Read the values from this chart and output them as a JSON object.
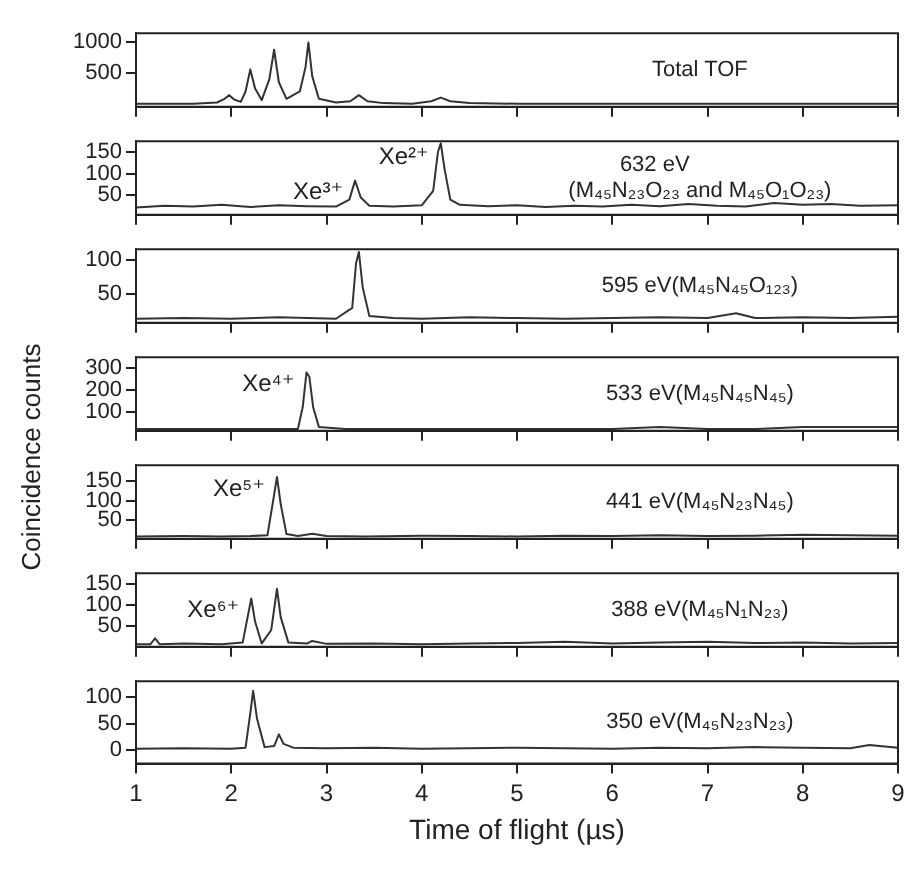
{
  "chart_data": [
    {
      "type": "line",
      "xlim": [
        1,
        9
      ],
      "xticks": [
        1,
        2,
        3,
        4,
        5,
        6,
        7,
        8,
        9
      ],
      "ylim": [
        -50,
        1150
      ],
      "yticks": [
        500,
        1000
      ],
      "tick_labels": "y",
      "annotations": [
        "Total TOF"
      ],
      "x": [
        1,
        1.3,
        1.6,
        1.85,
        1.93,
        1.98,
        2.03,
        2.1,
        2.15,
        2.2,
        2.25,
        2.32,
        2.4,
        2.45,
        2.5,
        2.58,
        2.72,
        2.78,
        2.81,
        2.85,
        2.92,
        3.1,
        3.25,
        3.34,
        3.43,
        3.6,
        3.9,
        4.1,
        4.2,
        4.3,
        4.5,
        5,
        5.5,
        6,
        6.5,
        7,
        7.5,
        8,
        8.5,
        9
      ],
      "series": [
        {
          "color": "#333333",
          "values": [
            0,
            0,
            0,
            20,
            80,
            140,
            70,
            30,
            200,
            560,
            250,
            60,
            400,
            880,
            350,
            80,
            200,
            600,
            1000,
            450,
            80,
            20,
            40,
            140,
            40,
            10,
            0,
            40,
            100,
            40,
            10,
            0,
            0,
            0,
            0,
            0,
            0,
            0,
            0,
            0
          ]
        }
      ]
    },
    {
      "type": "line",
      "xlim": [
        1,
        9
      ],
      "xticks": [
        1,
        2,
        3,
        4,
        5,
        6,
        7,
        8,
        9
      ],
      "ylim": [
        5,
        175
      ],
      "yticks": [
        50,
        100,
        150
      ],
      "tick_labels": "y",
      "annotations": [
        "632 eV",
        "(M₄₅N₂₃O₂₃ and M₄₅O₁O₂₃)",
        {
          "text": "Xe³⁺",
          "x": 3.3,
          "y": 84
        },
        {
          "text": "Xe²⁺",
          "x": 4.2,
          "y": 170
        }
      ],
      "x": [
        1,
        1.3,
        1.6,
        1.9,
        2.2,
        2.5,
        2.8,
        3.1,
        3.24,
        3.3,
        3.36,
        3.45,
        3.7,
        4.0,
        4.12,
        4.17,
        4.2,
        4.24,
        4.3,
        4.4,
        4.7,
        5,
        5.3,
        5.6,
        5.9,
        6.2,
        6.5,
        6.8,
        7.1,
        7.4,
        7.7,
        8,
        8.3,
        8.6,
        9
      ],
      "series": [
        {
          "color": "#333333",
          "values": [
            22,
            26,
            24,
            28,
            23,
            27,
            25,
            24,
            40,
            84,
            45,
            26,
            24,
            27,
            60,
            150,
            170,
            110,
            40,
            28,
            25,
            27,
            23,
            26,
            24,
            28,
            25,
            30,
            26,
            24,
            32,
            28,
            30,
            26,
            27
          ]
        }
      ]
    },
    {
      "type": "line",
      "xlim": [
        1,
        9
      ],
      "xticks": [
        1,
        2,
        3,
        4,
        5,
        6,
        7,
        8,
        9
      ],
      "ylim": [
        8,
        116
      ],
      "yticks": [
        50,
        100
      ],
      "tick_labels": "y",
      "annotations": [
        "595 eV(M₄₅N₄₅O₁₂₃)"
      ],
      "x": [
        1,
        1.5,
        2,
        2.5,
        2.8,
        3.1,
        3.27,
        3.31,
        3.34,
        3.38,
        3.45,
        3.7,
        4,
        4.5,
        5,
        5.5,
        6,
        6.5,
        7,
        7.3,
        7.5,
        8,
        8.5,
        9
      ],
      "series": [
        {
          "color": "#333333",
          "values": [
            14,
            15,
            14,
            16,
            15,
            14,
            30,
            95,
            112,
            60,
            18,
            15,
            14,
            16,
            15,
            14,
            15,
            16,
            15,
            22,
            15,
            16,
            15,
            17
          ]
        }
      ]
    },
    {
      "type": "line",
      "xlim": [
        1,
        9
      ],
      "xticks": [
        1,
        2,
        3,
        4,
        5,
        6,
        7,
        8,
        9
      ],
      "ylim": [
        12,
        350
      ],
      "yticks": [
        100,
        200,
        300
      ],
      "tick_labels": "y",
      "ylabel": "Coincidence counts",
      "annotations": [
        "533 eV(M₄₅N₄₅N₄₅)",
        {
          "text": "Xe⁴⁺",
          "x": 2.79,
          "y": 280
        }
      ],
      "x": [
        1,
        1.5,
        2,
        2.4,
        2.7,
        2.75,
        2.79,
        2.82,
        2.86,
        2.92,
        3.2,
        3.6,
        4,
        4.5,
        5,
        5.5,
        6,
        6.5,
        7,
        7.5,
        8,
        8.5,
        9
      ],
      "series": [
        {
          "color": "#333333",
          "values": [
            20,
            20,
            20,
            20,
            20,
            120,
            280,
            260,
            120,
            30,
            20,
            20,
            20,
            20,
            20,
            20,
            20,
            30,
            20,
            20,
            30,
            30,
            30
          ]
        }
      ]
    },
    {
      "type": "line",
      "xlim": [
        1,
        9
      ],
      "xticks": [
        1,
        2,
        3,
        4,
        5,
        6,
        7,
        8,
        9
      ],
      "ylim": [
        3,
        190
      ],
      "yticks": [
        50,
        100,
        150
      ],
      "tick_labels": "y",
      "annotations": [
        "441 eV(M₄₅N₂₃N₄₅)",
        {
          "text": "Xe⁵⁺",
          "x": 2.48,
          "y": 160
        }
      ],
      "x": [
        1,
        1.5,
        1.9,
        2.2,
        2.38,
        2.44,
        2.48,
        2.52,
        2.58,
        2.7,
        2.85,
        3,
        3.4,
        4,
        4.5,
        5,
        5.5,
        6,
        6.5,
        7,
        7.5,
        8,
        8.5,
        9
      ],
      "series": [
        {
          "color": "#333333",
          "values": [
            9,
            10,
            9,
            10,
            12,
            100,
            160,
            90,
            15,
            10,
            16,
            10,
            9,
            11,
            10,
            9,
            11,
            10,
            12,
            10,
            11,
            13,
            12,
            11
          ]
        }
      ]
    },
    {
      "type": "line",
      "xlim": [
        1,
        9
      ],
      "xticks": [
        1,
        2,
        3,
        4,
        5,
        6,
        7,
        8,
        9
      ],
      "ylim": [
        0,
        175
      ],
      "yticks": [
        50,
        100,
        150
      ],
      "tick_labels": "y",
      "annotations": [
        "388 eV(M₄₅N₁N₂₃)",
        {
          "text": "Xe⁶⁺",
          "x": 2.21,
          "y": 115
        }
      ],
      "x": [
        1,
        1.15,
        1.2,
        1.25,
        1.5,
        1.9,
        2.12,
        2.18,
        2.21,
        2.25,
        2.32,
        2.42,
        2.48,
        2.52,
        2.6,
        2.8,
        2.85,
        3,
        3.5,
        4,
        4.5,
        5,
        5.5,
        6,
        6.5,
        7,
        7.5,
        8,
        8.5,
        9
      ],
      "series": [
        {
          "color": "#333333",
          "values": [
            6,
            6,
            20,
            6,
            8,
            6,
            10,
            80,
            115,
            60,
            8,
            40,
            138,
            70,
            10,
            8,
            14,
            7,
            8,
            6,
            8,
            9,
            12,
            8,
            10,
            12,
            9,
            10,
            8,
            9
          ]
        }
      ]
    },
    {
      "type": "line",
      "xlim": [
        1,
        9
      ],
      "xticks": [
        1,
        2,
        3,
        4,
        5,
        6,
        7,
        8,
        9
      ],
      "ylim": [
        -25,
        130
      ],
      "yticks": [
        0,
        50,
        100
      ],
      "xlabel": "Time of flight (µs)",
      "annotations": [
        "350 eV(M₄₅N₂₃N₂₃)"
      ],
      "x": [
        1,
        1.5,
        2,
        2.15,
        2.2,
        2.23,
        2.27,
        2.35,
        2.45,
        2.5,
        2.55,
        2.65,
        3,
        3.5,
        4,
        4.5,
        5,
        5.5,
        6,
        6.5,
        7,
        7.5,
        8,
        8.5,
        8.7,
        9
      ],
      "series": [
        {
          "color": "#333333",
          "values": [
            3,
            4,
            3,
            5,
            70,
            112,
            60,
            6,
            8,
            30,
            12,
            5,
            4,
            5,
            3,
            4,
            5,
            4,
            3,
            5,
            4,
            6,
            5,
            4,
            10,
            5
          ]
        }
      ]
    }
  ]
}
